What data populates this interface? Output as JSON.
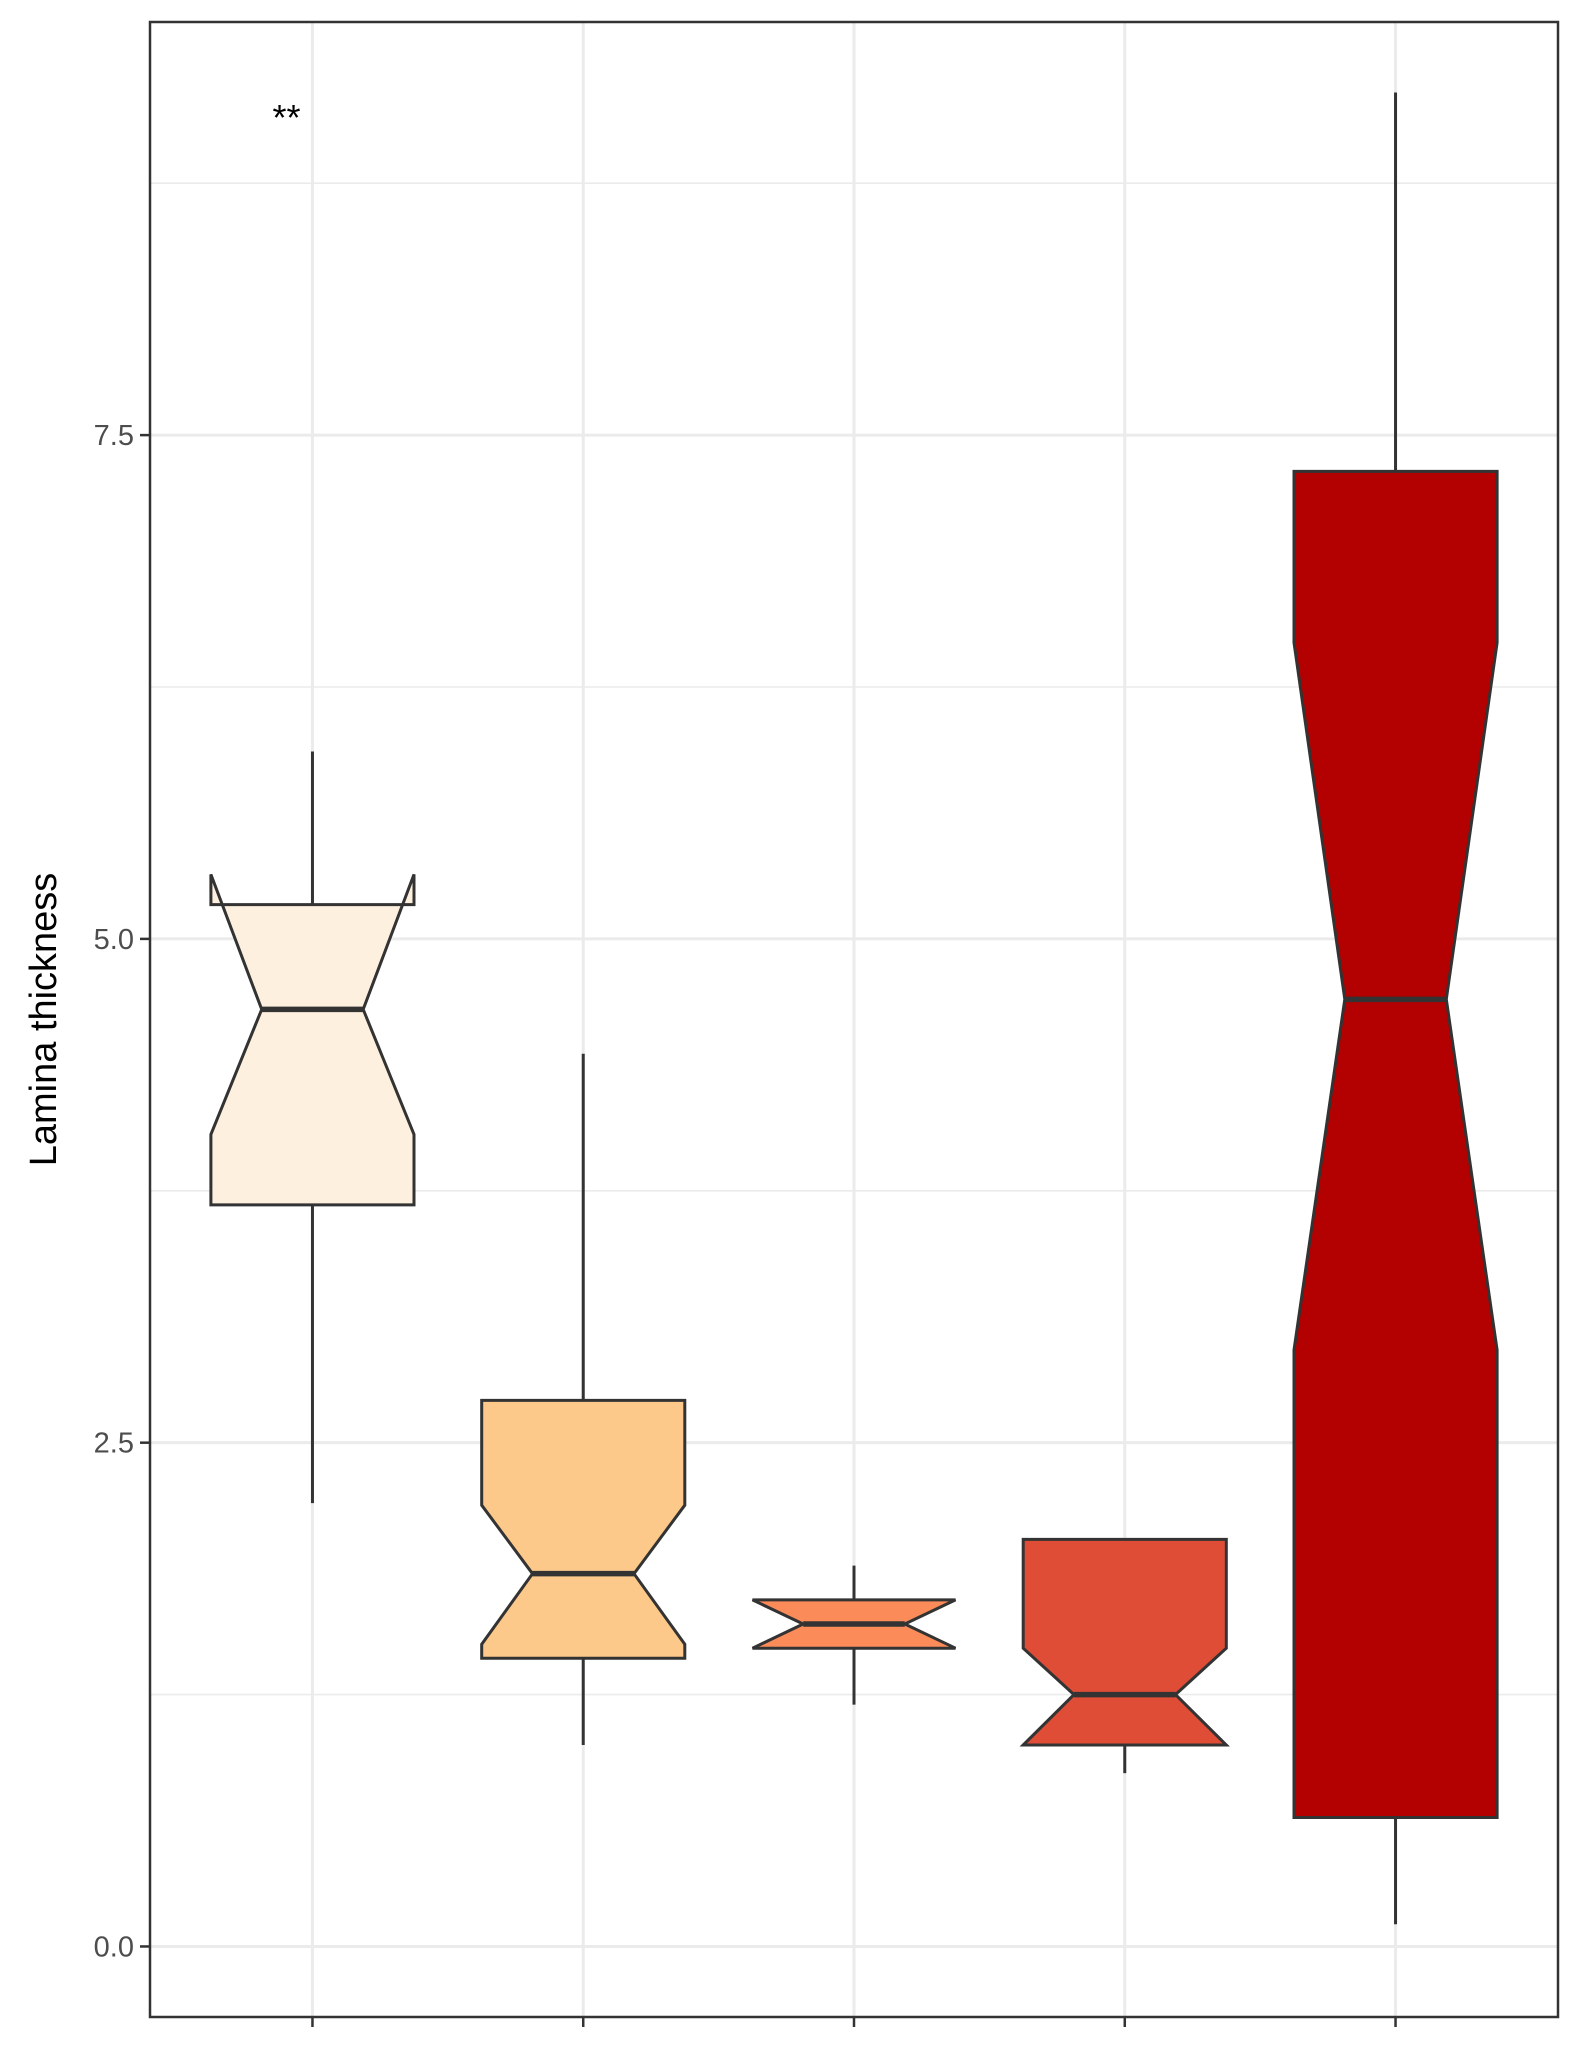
{
  "chart_data": {
    "type": "boxplot",
    "notched": true,
    "title": "",
    "xlabel": "",
    "ylabel": "Lamina thickness",
    "ylim": [
      -0.35,
      9.55
    ],
    "y_ticks": [
      0.0,
      2.5,
      5.0,
      7.5
    ],
    "y_tick_labels": [
      "0.0",
      "2.5",
      "5.0",
      "7.5"
    ],
    "x_ticks_labeled": false,
    "grid": true,
    "legend": "none",
    "annotation": "**",
    "boxes": [
      {
        "whisker_low": 2.2,
        "q1": 3.68,
        "notch_low": 4.03,
        "median": 4.65,
        "notch_high": 5.32,
        "q3": 5.17,
        "whisker_high": 5.93,
        "fill": "#fdf0df"
      },
      {
        "whisker_low": 1.0,
        "q1": 1.43,
        "notch_low": 1.5,
        "median": 1.85,
        "notch_high": 2.19,
        "q3": 2.71,
        "whisker_high": 4.43,
        "fill": "#fcc98b"
      },
      {
        "whisker_low": 1.2,
        "q1": 1.48,
        "notch_low": 1.48,
        "median": 1.6,
        "notch_high": 1.72,
        "q3": 1.72,
        "whisker_high": 1.89,
        "fill": "#fb8c5a"
      },
      {
        "whisker_low": 0.86,
        "q1": 1.0,
        "notch_low": 1.0,
        "median": 1.25,
        "notch_high": 1.48,
        "q3": 2.02,
        "whisker_high": 2.02,
        "fill": "#e04d37"
      },
      {
        "whisker_low": 0.11,
        "q1": 0.64,
        "notch_low": 2.96,
        "median": 4.7,
        "notch_high": 6.47,
        "q3": 7.32,
        "whisker_high": 9.2,
        "fill": "#b30000"
      }
    ],
    "colors": {
      "panel_border": "#333333",
      "grid": "#ebebeb",
      "box_outline": "#333333",
      "axis_text": "#4d4d4d"
    }
  }
}
